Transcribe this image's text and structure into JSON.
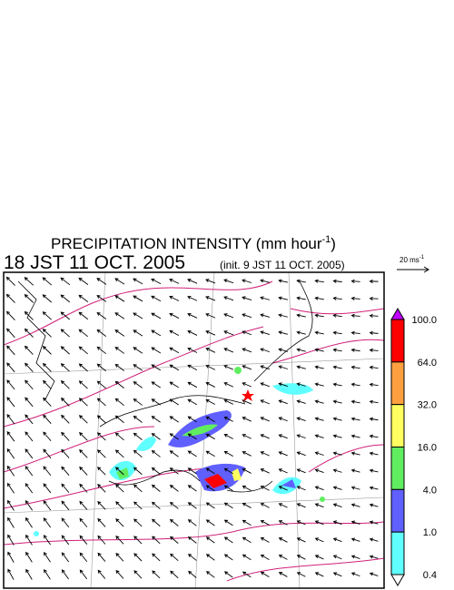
{
  "title": {
    "text": "PRECIPITATION INTENSITY (mm hour",
    "superscript": "-1",
    "close": ")"
  },
  "valid_time": "18 JST 11 OCT. 2005",
  "init_time": "(init. 9 JST 11 OCT. 2005)",
  "vector_scale": {
    "text": "20 ms",
    "superscript": "-1"
  },
  "colorbar": {
    "labels": [
      "100.0",
      "64.0",
      "32.0",
      "16.0",
      "4.0",
      "1.0",
      "0.4"
    ],
    "colors": [
      "#ff0000",
      "#ffa040",
      "#ffff60",
      "#60ee60",
      "#6060ff",
      "#60ffff"
    ],
    "over_color": "#c000ff",
    "under_color": "#ffffff"
  }
}
